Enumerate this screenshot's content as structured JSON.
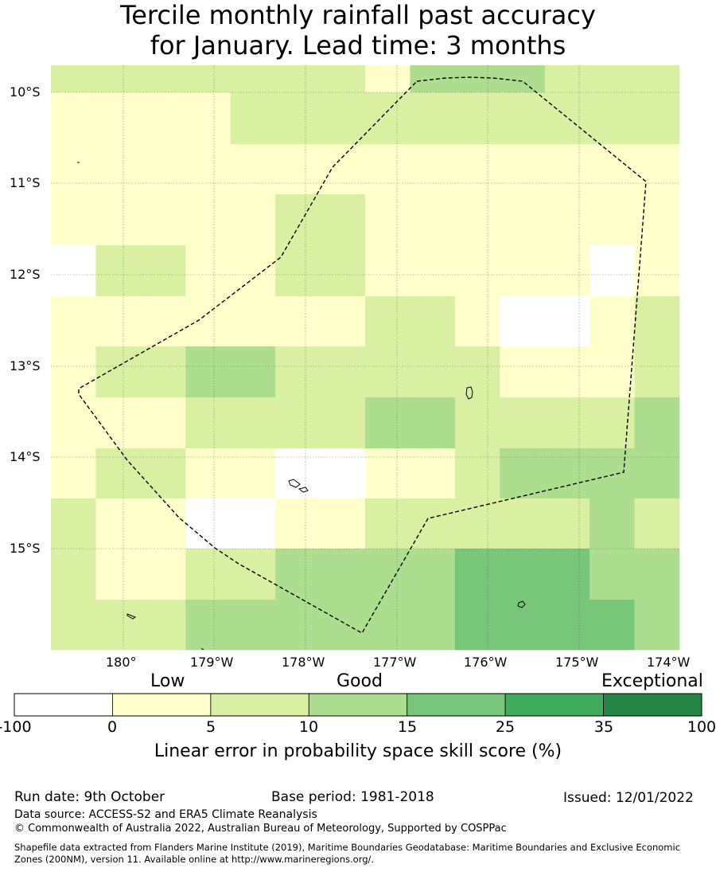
{
  "title": {
    "line1": "Tercile monthly rainfall past accuracy",
    "line2": "for January. Lead time: 3 months"
  },
  "map": {
    "lat_labels": [
      "10°S",
      "11°S",
      "12°S",
      "13°S",
      "14°S",
      "15°S"
    ],
    "lon_labels": [
      "180°",
      "179°W",
      "178°W",
      "177°W",
      "176°W",
      "175°W",
      "174°W"
    ],
    "grid_values": [
      [
        5,
        5,
        5,
        5,
        5,
        5,
        5,
        0,
        10,
        10,
        10,
        5,
        5,
        5
      ],
      [
        0,
        0,
        0,
        0,
        5,
        5,
        5,
        5,
        5,
        5,
        5,
        5,
        5,
        5
      ],
      [
        0,
        0,
        0,
        0,
        0,
        0,
        0,
        0,
        0,
        0,
        0,
        0,
        0,
        0
      ],
      [
        0,
        0,
        0,
        0,
        0,
        5,
        5,
        0,
        0,
        0,
        0,
        0,
        0,
        0
      ],
      [
        -1,
        5,
        5,
        0,
        0,
        5,
        5,
        0,
        0,
        0,
        0,
        0,
        -1,
        0
      ],
      [
        0,
        0,
        0,
        0,
        0,
        0,
        0,
        5,
        5,
        0,
        -1,
        -1,
        0,
        5
      ],
      [
        0,
        5,
        5,
        10,
        10,
        5,
        5,
        5,
        5,
        5,
        0,
        0,
        0,
        5
      ],
      [
        0,
        0,
        0,
        5,
        5,
        5,
        5,
        10,
        10,
        5,
        5,
        5,
        5,
        10
      ],
      [
        0,
        5,
        5,
        0,
        0,
        -1,
        -1,
        0,
        0,
        5,
        10,
        10,
        10,
        10
      ],
      [
        5,
        0,
        0,
        -1,
        -1,
        0,
        0,
        5,
        5,
        5,
        5,
        5,
        10,
        5
      ],
      [
        5,
        0,
        0,
        5,
        5,
        10,
        10,
        10,
        10,
        15,
        15,
        15,
        10,
        10
      ],
      [
        5,
        5,
        5,
        10,
        10,
        10,
        10,
        10,
        10,
        15,
        15,
        15,
        15,
        10
      ]
    ]
  },
  "colorbar": {
    "words": [
      "Low",
      "Good",
      "Exceptional"
    ],
    "ticks": [
      "-100",
      "0",
      "5",
      "10",
      "15",
      "25",
      "35",
      "100"
    ],
    "bins": [
      {
        "from": -100,
        "to": 0,
        "color": "#ffffff"
      },
      {
        "from": 0,
        "to": 5,
        "color": "#ffffcc"
      },
      {
        "from": 5,
        "to": 10,
        "color": "#d9f0a3"
      },
      {
        "from": 10,
        "to": 15,
        "color": "#addd8e"
      },
      {
        "from": 15,
        "to": 25,
        "color": "#78c679"
      },
      {
        "from": 25,
        "to": 35,
        "color": "#41ab5d"
      },
      {
        "from": 35,
        "to": 100,
        "color": "#238443"
      }
    ],
    "caption": "Linear error in probability space skill score (%)"
  },
  "footer": {
    "run_date": "Run date: 9th October",
    "base_period": "Base period: 1981-2018",
    "issued": "Issued: 12/01/2022",
    "data_source": "Data source: ACCESS-S2 and ERA5 Climate Reanalysis",
    "copyright": "© Commonwealth of Australia 2022, Australian Bureau of Meteorology, Supported by COSPPac",
    "shapefile_line1": "Shapefile data extracted from Flanders Marine Institute (2019), Maritime Boundaries Geodatabase: Maritime Boundaries and Exclusive Economic",
    "shapefile_line2": "Zones (200NM), version 11. Available online at http://www.marineregions.org/."
  }
}
